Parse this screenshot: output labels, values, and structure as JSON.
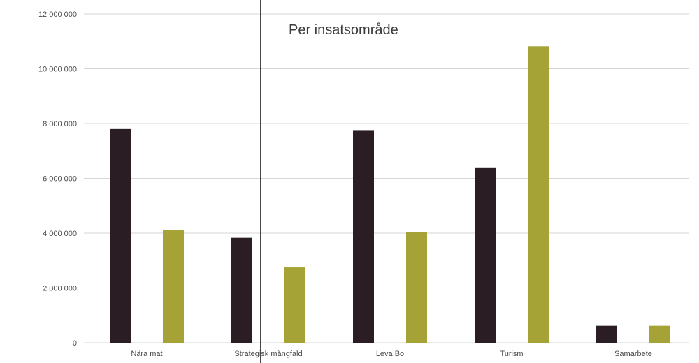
{
  "chart_data": {
    "type": "bar",
    "title": "Per insatsområde",
    "xlabel": "",
    "ylabel": "",
    "categories": [
      "Nära mat",
      "Strategisk mångfald",
      "Leva Bo",
      "Turism",
      "Samarbete"
    ],
    "series": [
      {
        "values": [
          7800000,
          3830000,
          7760000,
          6400000,
          620000
        ],
        "color": "#2a1d24"
      },
      {
        "values": [
          4120000,
          2750000,
          4040000,
          10820000,
          620000
        ],
        "color": "#a5a236"
      }
    ],
    "ylim": [
      0,
      12000000
    ],
    "yticks": [
      0,
      2000000,
      4000000,
      6000000,
      8000000,
      10000000,
      12000000
    ],
    "ytick_labels": [
      "0",
      "2 000 000",
      "4 000 000",
      "6 000 000",
      "8 000 000",
      "10 000 000",
      "12 000 000"
    ],
    "grid": true,
    "legend": "none"
  }
}
